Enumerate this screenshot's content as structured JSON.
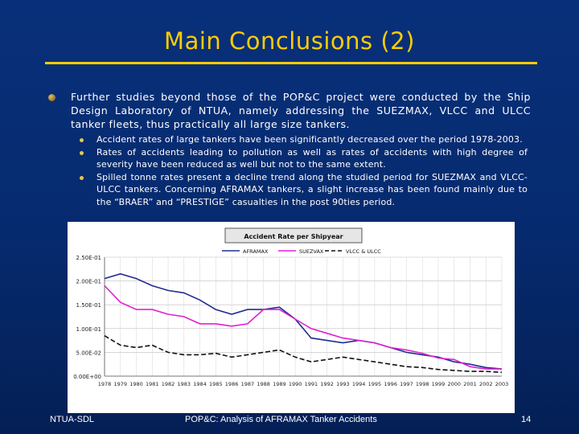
{
  "slide": {
    "title": "Main Conclusions (2)",
    "main_bullet": "Further studies beyond those of the POP&C project were conducted by the Ship Design Laboratory of NTUA, namely addressing the SUEZMAX, VLCC and ULCC tanker fleets, thus practically all large size tankers.",
    "sub_bullets": [
      "Accident rates of large tankers have been significantly decreased over the period 1978-2003.",
      "Rates of accidents leading to pollution as well as rates of accidents with high degree of severity have been reduced as well but not to the same extent.",
      "Spilled tonne rates present a decline trend along the studied period for SUEZMAX and VLCC-ULCC tankers. Concerning AFRAMAX tankers, a slight increase has been found mainly due to the “BRAER” and “PRESTIGE” casualties in the post 90ties period."
    ]
  },
  "footer": {
    "left": "NTUA-SDL",
    "center": "POP&C: Analysis of AFRAMAX Tanker Accidents",
    "page": "14"
  },
  "colors": {
    "aframax": "#1f2d8f",
    "suezmax": "#e020d0",
    "vlcc": "#111111"
  },
  "chart_data": {
    "type": "line",
    "title": "Accident Rate per Shipyear",
    "x": [
      "1978",
      "1979",
      "1980",
      "1981",
      "1982",
      "1983",
      "1984",
      "1985",
      "1986",
      "1987",
      "1988",
      "1989",
      "1990",
      "1991",
      "1992",
      "1993",
      "1994",
      "1995",
      "1996",
      "1997",
      "1998",
      "1999",
      "2000",
      "2001",
      "2002",
      "2003"
    ],
    "ylim": [
      0,
      0.25
    ],
    "yticks": [
      "0.00E+00",
      "5.00E-02",
      "1.00E-01",
      "1.50E-01",
      "2.00E-01",
      "2.50E-01"
    ],
    "grid": true,
    "legend_position": "top",
    "series": [
      {
        "name": "AFRAMAX",
        "style": "solid",
        "values": [
          0.205,
          0.215,
          0.205,
          0.19,
          0.18,
          0.175,
          0.16,
          0.14,
          0.13,
          0.14,
          0.14,
          0.145,
          0.12,
          0.08,
          0.075,
          0.07,
          0.075,
          0.07,
          0.06,
          0.05,
          0.045,
          0.04,
          0.03,
          0.025,
          0.018,
          0.015
        ]
      },
      {
        "name": "SUEZVAX",
        "style": "solid",
        "values": [
          0.19,
          0.155,
          0.14,
          0.14,
          0.13,
          0.125,
          0.11,
          0.11,
          0.105,
          0.11,
          0.14,
          0.14,
          0.12,
          0.1,
          0.09,
          0.08,
          0.075,
          0.07,
          0.06,
          0.055,
          0.048,
          0.038,
          0.035,
          0.02,
          0.015,
          0.015
        ]
      },
      {
        "name": "VLCC & ULCC",
        "style": "dashed",
        "values": [
          0.085,
          0.065,
          0.06,
          0.065,
          0.05,
          0.045,
          0.045,
          0.048,
          0.04,
          0.045,
          0.05,
          0.055,
          0.04,
          0.03,
          0.035,
          0.04,
          0.035,
          0.03,
          0.025,
          0.02,
          0.018,
          0.014,
          0.012,
          0.01,
          0.01,
          0.008
        ]
      }
    ]
  }
}
